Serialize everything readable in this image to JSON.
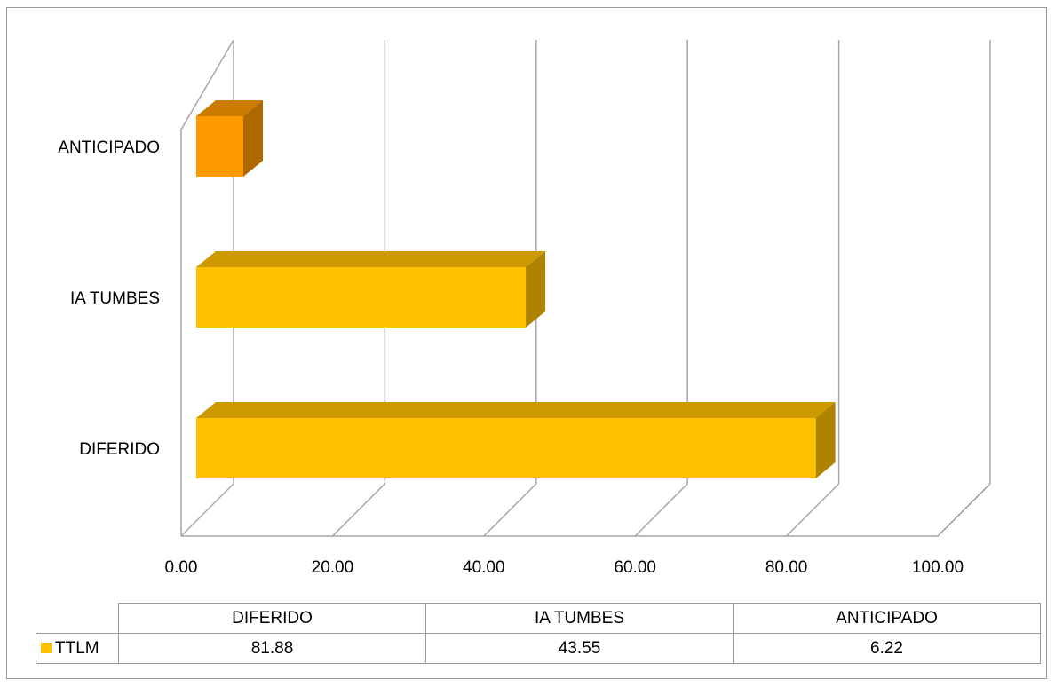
{
  "chart_data": {
    "type": "bar",
    "orientation": "horizontal",
    "style": "3d",
    "categories": [
      "DIFERIDO",
      "IA TUMBES",
      "ANTICIPADO"
    ],
    "series": [
      {
        "name": "TTLM",
        "values": [
          81.88,
          43.55,
          6.22
        ]
      }
    ],
    "bar_colors": [
      "#ffc000",
      "#ffc000",
      "#ff9900"
    ],
    "xlim": [
      0,
      100
    ],
    "x_ticks": [
      "0.00",
      "20.00",
      "40.00",
      "60.00",
      "80.00",
      "100.00"
    ],
    "grid": true,
    "data_table": true,
    "title": "",
    "xlabel": "",
    "ylabel": ""
  }
}
